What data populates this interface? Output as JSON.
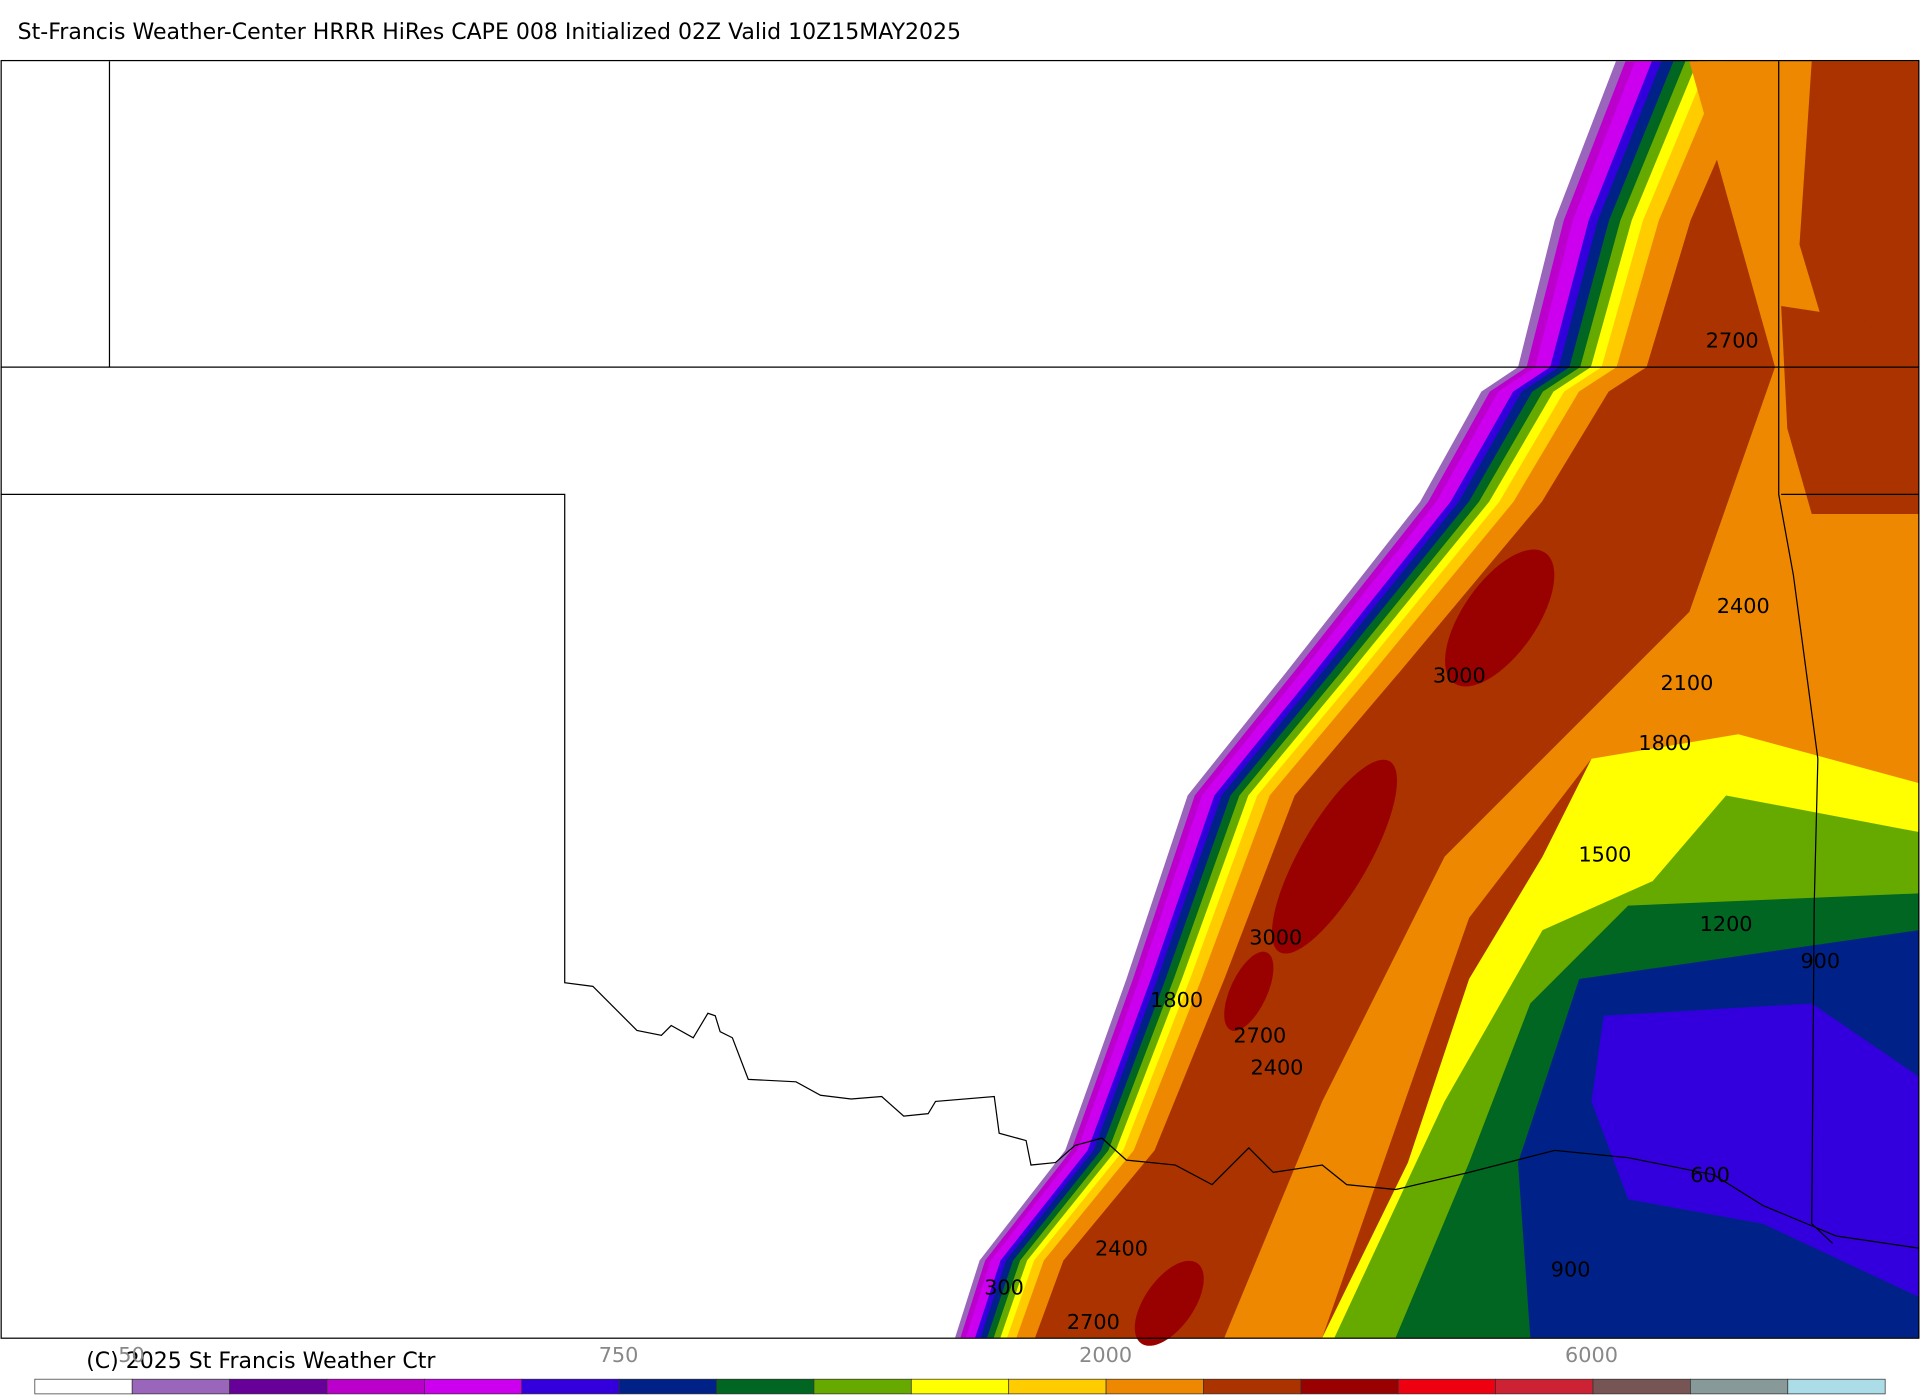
{
  "title": "St-Francis Weather-Center HRRR HiRes CAPE  008 Initialized  02Z Valid 10Z15MAY2025",
  "copyright": "(C) 2025 St Francis Weather Ctr",
  "contour_labels": [
    "2700",
    "2400",
    "3000",
    "2100",
    "1800",
    "1500",
    "1200",
    "900",
    "3000",
    "1800",
    "2700",
    "2400",
    "600",
    "2400",
    "900",
    "300",
    "2700"
  ],
  "colorbar": {
    "colors": [
      "#ffffff",
      "#9966bb",
      "#660099",
      "#bb00cc",
      "#cc00ee",
      "#3300dd",
      "#002288",
      "#006622",
      "#66aa00",
      "#ffff00",
      "#ffcc00",
      "#ee8800",
      "#aa3300",
      "#990000",
      "#ee0011",
      "#cc2233",
      "#775555",
      "#889999",
      "#aadde8"
    ],
    "labels": [
      "50",
      "750",
      "2000",
      "6000"
    ]
  }
}
